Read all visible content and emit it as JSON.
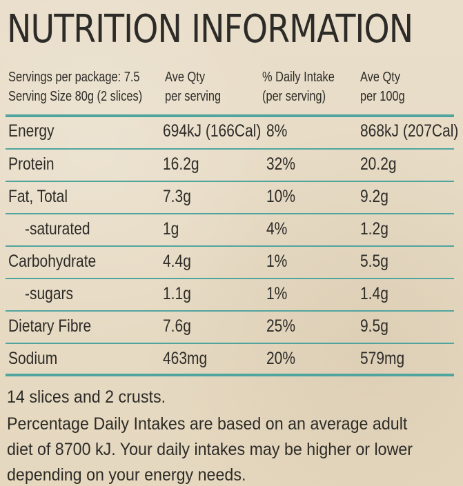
{
  "title": "NUTRITION INFORMATION",
  "header": {
    "servings": "Servings per package: 7.5",
    "serving_size": "Serving Size 80g (2 slices)",
    "col2_line1": "Ave Qty",
    "col2_line2": "per serving",
    "col3_line1": "% Daily Intake",
    "col3_line2": "(per serving)",
    "col4_line1": "Ave Qty",
    "col4_line2": "per 100g"
  },
  "rows": [
    {
      "name": "Energy",
      "per_serving": "694kJ (166Cal)",
      "daily_intake": "8%",
      "per_100g": "868kJ (207Cal)"
    },
    {
      "name": "Protein",
      "per_serving": "16.2g",
      "daily_intake": "32%",
      "per_100g": "20.2g"
    },
    {
      "name": "Fat, Total",
      "per_serving": "7.3g",
      "daily_intake": "10%",
      "per_100g": "9.2g"
    },
    {
      "name": "-saturated",
      "per_serving": "1g",
      "daily_intake": "4%",
      "per_100g": "1.2g"
    },
    {
      "name": "Carbohydrate",
      "per_serving": "4.4g",
      "daily_intake": "1%",
      "per_100g": "5.5g"
    },
    {
      "name": "-sugars",
      "per_serving": "1.1g",
      "daily_intake": "1%",
      "per_100g": "1.4g"
    },
    {
      "name": "Dietary Fibre",
      "per_serving": "7.6g",
      "daily_intake": "25%",
      "per_100g": "9.5g"
    },
    {
      "name": "Sodium",
      "per_serving": "463mg",
      "daily_intake": "20%",
      "per_100g": "579mg"
    }
  ],
  "notes": {
    "slices": "14 slices and 2 crusts.",
    "disclaimer": "Percentage Daily Intakes are based on an average adult diet of 8700 kJ. Your daily intakes may be higher or lower depending on your energy needs."
  },
  "colors": {
    "background": "#e8dcc4",
    "text": "#2d2b27",
    "rule": "#4fa59e"
  }
}
